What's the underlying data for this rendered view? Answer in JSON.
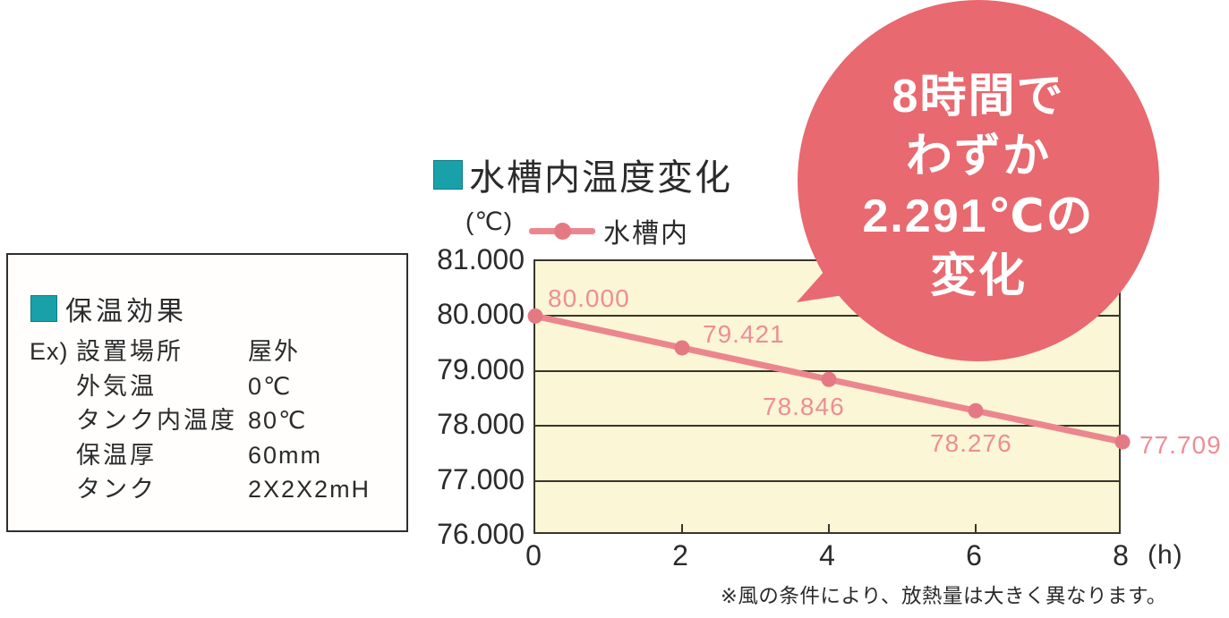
{
  "panel": {
    "title": "保温効果",
    "rows": [
      {
        "prefix": "Ex)",
        "label": "設置場所",
        "value": "屋外"
      },
      {
        "prefix": "",
        "label": "外気温",
        "value": "0℃"
      },
      {
        "prefix": "",
        "label": "タンク内温度",
        "value": "80℃"
      },
      {
        "prefix": "",
        "label": "保温厚",
        "value": "60mm"
      },
      {
        "prefix": "",
        "label": "タンク",
        "value": "2X2X2mH"
      }
    ]
  },
  "chart": {
    "title": "水槽内温度変化",
    "y_unit": "(℃)",
    "x_unit": "(h)",
    "legend_label": "水槽内",
    "footnote": "※風の条件により、放熱量は大きく異なります。"
  },
  "badge": {
    "lines": [
      "8時間で",
      "わずか",
      "2.291℃の",
      "変化"
    ]
  },
  "chart_data": {
    "type": "line",
    "title": "水槽内温度変化",
    "xlabel": "(h)",
    "ylabel": "(℃)",
    "x": [
      0,
      2,
      4,
      6,
      8
    ],
    "series": [
      {
        "name": "水槽内",
        "values": [
          80.0,
          79.421,
          78.846,
          78.276,
          77.709
        ]
      }
    ],
    "point_labels": [
      "80.000",
      "79.421",
      "78.846",
      "78.276",
      "77.709"
    ],
    "xlim": [
      0,
      8
    ],
    "ylim": [
      76,
      81
    ],
    "yticks": [
      "81.000",
      "80.000",
      "79.000",
      "78.000",
      "77.000",
      "76.000"
    ],
    "xticks": [
      "0",
      "2",
      "4",
      "6",
      "8"
    ],
    "grid": true,
    "legend_position": "top-left"
  },
  "colors": {
    "teal_accent": "#1aa0a8",
    "plot_background": "#faf6d6",
    "line": "#ec868e",
    "point": "#e57983",
    "data_label": "#ee8d95",
    "badge": "#e8696f",
    "text": "#2b2b2b"
  }
}
